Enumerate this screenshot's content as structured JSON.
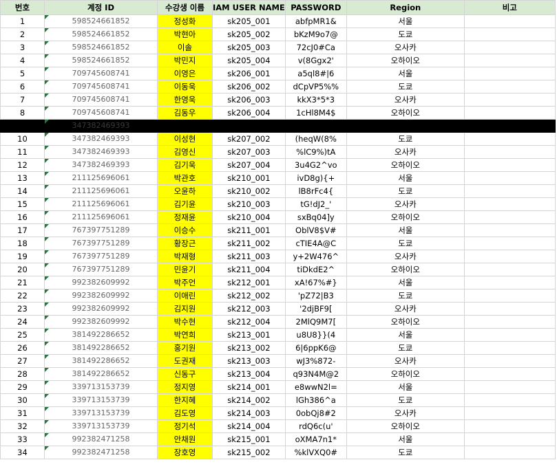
{
  "headers": [
    "번호",
    "계정 ID",
    "수강생 이름",
    "IAM USER NAME",
    "PASSWORD",
    "Region",
    "비고"
  ],
  "rows": [
    {
      "no": "1",
      "acct": "598524661852",
      "name": "정성화",
      "iam": "sk205_001",
      "pw": "abfpMR1&",
      "region": "서울",
      "note": ""
    },
    {
      "no": "2",
      "acct": "598524661852",
      "name": "박현아",
      "iam": "sk205_002",
      "pw": "bKzM9o7@",
      "region": "도쿄",
      "note": ""
    },
    {
      "no": "3",
      "acct": "598524661852",
      "name": "이솔",
      "iam": "sk205_003",
      "pw": "72cJ0#Ca",
      "region": "오사카",
      "note": ""
    },
    {
      "no": "4",
      "acct": "598524661852",
      "name": "박민지",
      "iam": "sk205_004",
      "pw": "v(8Ggx2'",
      "region": "오하이오",
      "note": ""
    },
    {
      "no": "5",
      "acct": "709745608741",
      "name": "이영은",
      "iam": "sk206_001",
      "pw": "a5ql8#|6",
      "region": "서울",
      "note": ""
    },
    {
      "no": "6",
      "acct": "709745608741",
      "name": "이동욱",
      "iam": "sk206_002",
      "pw": "dCpVP5%%",
      "region": "도쿄",
      "note": ""
    },
    {
      "no": "7",
      "acct": "709745608741",
      "name": "한영욱",
      "iam": "sk206_003",
      "pw": "kkX3*5*3",
      "region": "오사카",
      "note": ""
    },
    {
      "no": "8",
      "acct": "709745608741",
      "name": "김동우",
      "iam": "sk206_004",
      "pw": "1cHl8M4$",
      "region": "오하이오",
      "note": ""
    },
    {
      "no": "",
      "acct": "347382469393",
      "name": "",
      "iam": "",
      "pw": "",
      "region": "",
      "note": "",
      "hidden": true
    },
    {
      "no": "10",
      "acct": "347382469393",
      "name": "이성현",
      "iam": "sk207_002",
      "pw": "(heqW(8%",
      "region": "도쿄",
      "note": ""
    },
    {
      "no": "11",
      "acct": "347382469393",
      "name": "김영신",
      "iam": "sk207_003",
      "pw": "%lC9%)tA",
      "region": "오사카",
      "note": ""
    },
    {
      "no": "12",
      "acct": "347382469393",
      "name": "김기욱",
      "iam": "sk207_004",
      "pw": "3u4G2^vo",
      "region": "오하이오",
      "note": ""
    },
    {
      "no": "13",
      "acct": "211125696061",
      "name": "박관호",
      "iam": "sk210_001",
      "pw": "ivD8g){+",
      "region": "서울",
      "note": ""
    },
    {
      "no": "14",
      "acct": "211125696061",
      "name": "오윤하",
      "iam": "sk210_002",
      "pw": "lB8rFc4{",
      "region": "도쿄",
      "note": ""
    },
    {
      "no": "15",
      "acct": "211125696061",
      "name": "김기윤",
      "iam": "sk210_003",
      "pw": "tG!dJ2_'",
      "region": "오사카",
      "note": ""
    },
    {
      "no": "16",
      "acct": "211125696061",
      "name": "정재윤",
      "iam": "sk210_004",
      "pw": "sxBq04]y",
      "region": "오하이오",
      "note": ""
    },
    {
      "no": "17",
      "acct": "767397751289",
      "name": "이승수",
      "iam": "sk211_001",
      "pw": "OblV8$V#",
      "region": "서울",
      "note": ""
    },
    {
      "no": "18",
      "acct": "767397751289",
      "name": "황장근",
      "iam": "sk211_002",
      "pw": "cTIE4A@C",
      "region": "도쿄",
      "note": ""
    },
    {
      "no": "19",
      "acct": "767397751289",
      "name": "박재형",
      "iam": "sk211_003",
      "pw": "y+2W476^",
      "region": "오사카",
      "note": ""
    },
    {
      "no": "20",
      "acct": "767397751289",
      "name": "민윤기",
      "iam": "sk211_004",
      "pw": "tiDkdE2^",
      "region": "오하이오",
      "note": ""
    },
    {
      "no": "21",
      "acct": "992382609992",
      "name": "박주언",
      "iam": "sk212_001",
      "pw": "xA!67%#}",
      "region": "서울",
      "note": ""
    },
    {
      "no": "22",
      "acct": "992382609992",
      "name": "이애린",
      "iam": "sk212_002",
      "pw": "'pZ72|B3",
      "region": "도쿄",
      "note": ""
    },
    {
      "no": "23",
      "acct": "992382609992",
      "name": "김지원",
      "iam": "sk212_003",
      "pw": "'2djBF9[",
      "region": "오사카",
      "note": ""
    },
    {
      "no": "24",
      "acct": "992382609992",
      "name": "박수현",
      "iam": "sk212_004",
      "pw": "2MlQ9M7[",
      "region": "오하이오",
      "note": ""
    },
    {
      "no": "25",
      "acct": "381492286652",
      "name": "박연희",
      "iam": "sk213_001",
      "pw": "u8U8}}(4",
      "region": "서울",
      "note": ""
    },
    {
      "no": "26",
      "acct": "381492286652",
      "name": "홍기원",
      "iam": "sk213_002",
      "pw": "6|6ppK6@",
      "region": "도쿄",
      "note": ""
    },
    {
      "no": "27",
      "acct": "381492286652",
      "name": "도권재",
      "iam": "sk213_003",
      "pw": "wJ3%872-",
      "region": "오사카",
      "note": ""
    },
    {
      "no": "28",
      "acct": "381492286652",
      "name": "신동구",
      "iam": "sk213_004",
      "pw": "q93N4M@2",
      "region": "오하이오",
      "note": ""
    },
    {
      "no": "29",
      "acct": "339713153739",
      "name": "정지영",
      "iam": "sk214_001",
      "pw": "e8wwN2l=",
      "region": "서울",
      "note": ""
    },
    {
      "no": "30",
      "acct": "339713153739",
      "name": "한지혜",
      "iam": "sk214_002",
      "pw": "lGh386^a",
      "region": "도쿄",
      "note": ""
    },
    {
      "no": "31",
      "acct": "339713153739",
      "name": "김도영",
      "iam": "sk214_003",
      "pw": "0obQj8#2",
      "region": "오사카",
      "note": ""
    },
    {
      "no": "32",
      "acct": "339713153739",
      "name": "정기석",
      "iam": "sk214_004",
      "pw": "rdQ6c(u'",
      "region": "오하이오",
      "note": ""
    },
    {
      "no": "33",
      "acct": "992382471258",
      "name": "안채원",
      "iam": "sk215_001",
      "pw": "oXMA7n1*",
      "region": "서울",
      "note": ""
    },
    {
      "no": "34",
      "acct": "992382471258",
      "name": "장호영",
      "iam": "sk215_002",
      "pw": "%klVXQ0#",
      "region": "도쿄",
      "note": ""
    }
  ]
}
